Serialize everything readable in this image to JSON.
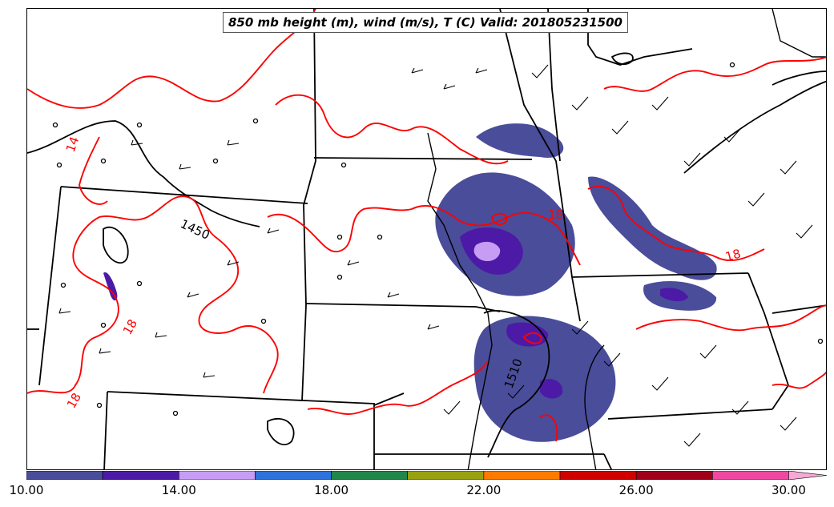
{
  "title": "850 mb height (m), wind (m/s), T (C) Valid: 201805231500",
  "colorbar": {
    "min": 10,
    "max": 31,
    "bins": [
      {
        "from": 10,
        "to": 12,
        "color": "#4a4d9a"
      },
      {
        "from": 12,
        "to": 14,
        "color": "#4c1aa6"
      },
      {
        "from": 14,
        "to": 16,
        "color": "#c79cf5"
      },
      {
        "from": 16,
        "to": 18,
        "color": "#2e72dc"
      },
      {
        "from": 18,
        "to": 20,
        "color": "#21864a"
      },
      {
        "from": 20,
        "to": 22,
        "color": "#98a112"
      },
      {
        "from": 22,
        "to": 24,
        "color": "#ff7a00"
      },
      {
        "from": 24,
        "to": 26,
        "color": "#d10000"
      },
      {
        "from": 26,
        "to": 28,
        "color": "#a00018"
      },
      {
        "from": 28,
        "to": 30,
        "color": "#f048a0"
      },
      {
        "from": 30,
        "to": 31,
        "color": "#f8a8d6",
        "extend": true
      }
    ],
    "tick_labels": [
      "10.00",
      "14.00",
      "18.00",
      "22.00",
      "26.00",
      "30.00"
    ],
    "tick_values": [
      10,
      14,
      18,
      22,
      26,
      30
    ]
  },
  "contour_labels": {
    "height": [
      "1450",
      "1510"
    ],
    "temperature": [
      "14",
      "18",
      "18",
      "18",
      "18"
    ]
  },
  "colors": {
    "height_contour": "#000000",
    "temperature_contour": "#ff0000",
    "boundaries": "#000000"
  }
}
